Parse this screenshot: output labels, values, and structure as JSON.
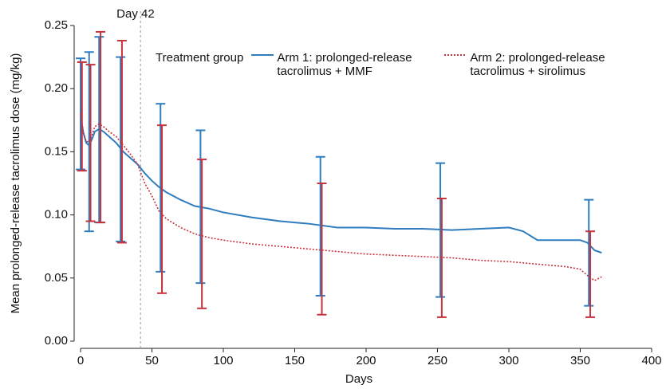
{
  "chart_data": {
    "type": "line",
    "x_label": "Days",
    "y_label": "Mean prolonged-release tacrolimus dose (mg/kg)",
    "xlim": [
      0,
      400
    ],
    "xticks": [
      0,
      50,
      100,
      150,
      200,
      250,
      300,
      350,
      400
    ],
    "ylim": [
      0,
      0.25
    ],
    "yticks": [
      {
        "value": 0,
        "label": "0.00"
      },
      0.05,
      {
        "value": 0.1,
        "label": "0.10"
      },
      0.15,
      {
        "value": 0.2,
        "label": "0.20"
      },
      0.25
    ],
    "vline": {
      "x": 42,
      "label": "Day 42"
    },
    "legend_title": "Treatment group",
    "series": [
      {
        "name": "Arm 1: prolonged-release tacrolimus + MMF",
        "color": "#2f7dbf",
        "dash": "solid",
        "x": [
          0,
          2,
          4,
          6,
          8,
          10,
          13,
          16,
          20,
          25,
          30,
          35,
          40,
          45,
          50,
          55,
          60,
          70,
          80,
          90,
          100,
          120,
          140,
          160,
          180,
          200,
          220,
          240,
          260,
          280,
          300,
          310,
          320,
          330,
          340,
          350,
          355,
          360,
          365
        ],
        "values": [
          0.178,
          0.165,
          0.157,
          0.155,
          0.16,
          0.166,
          0.168,
          0.166,
          0.162,
          0.157,
          0.15,
          0.145,
          0.14,
          0.133,
          0.127,
          0.122,
          0.118,
          0.112,
          0.107,
          0.105,
          0.102,
          0.098,
          0.095,
          0.093,
          0.09,
          0.09,
          0.089,
          0.089,
          0.088,
          0.089,
          0.09,
          0.087,
          0.08,
          0.08,
          0.08,
          0.08,
          0.078,
          0.072,
          0.07
        ],
        "error_bars": {
          "x": [
            0,
            6,
            13,
            28,
            56,
            84,
            168,
            252,
            356
          ],
          "values": [
            0.18,
            0.158,
            0.1675,
            0.152,
            0.1215,
            0.1065,
            0.091,
            0.088,
            0.07
          ],
          "errors": [
            0.044,
            0.071,
            0.0735,
            0.073,
            0.0665,
            0.0605,
            0.055,
            0.053,
            0.042
          ]
        }
      },
      {
        "name": "Arm 2: prolonged-release tacrolimus + sirolimus",
        "color": "#c8323c",
        "dash": "dotted",
        "x": [
          0,
          2,
          4,
          6,
          8,
          10,
          13,
          16,
          20,
          25,
          30,
          35,
          40,
          45,
          50,
          55,
          60,
          70,
          80,
          90,
          100,
          120,
          140,
          160,
          180,
          200,
          220,
          240,
          260,
          280,
          300,
          310,
          320,
          330,
          340,
          350,
          355,
          360,
          365
        ],
        "values": [
          0.18,
          0.165,
          0.158,
          0.158,
          0.163,
          0.17,
          0.172,
          0.17,
          0.166,
          0.162,
          0.155,
          0.148,
          0.14,
          0.125,
          0.115,
          0.103,
          0.097,
          0.09,
          0.085,
          0.082,
          0.08,
          0.077,
          0.075,
          0.073,
          0.071,
          0.069,
          0.068,
          0.067,
          0.066,
          0.064,
          0.063,
          0.062,
          0.061,
          0.06,
          0.059,
          0.057,
          0.052,
          0.048,
          0.051
        ],
        "error_bars": {
          "x": [
            1,
            7,
            14,
            29,
            57,
            85,
            169,
            253,
            357
          ],
          "values": [
            0.178,
            0.157,
            0.1695,
            0.158,
            0.1045,
            0.085,
            0.073,
            0.066,
            0.053
          ],
          "errors": [
            0.043,
            0.062,
            0.0755,
            0.08,
            0.0665,
            0.059,
            0.052,
            0.047,
            0.034
          ]
        }
      }
    ]
  }
}
